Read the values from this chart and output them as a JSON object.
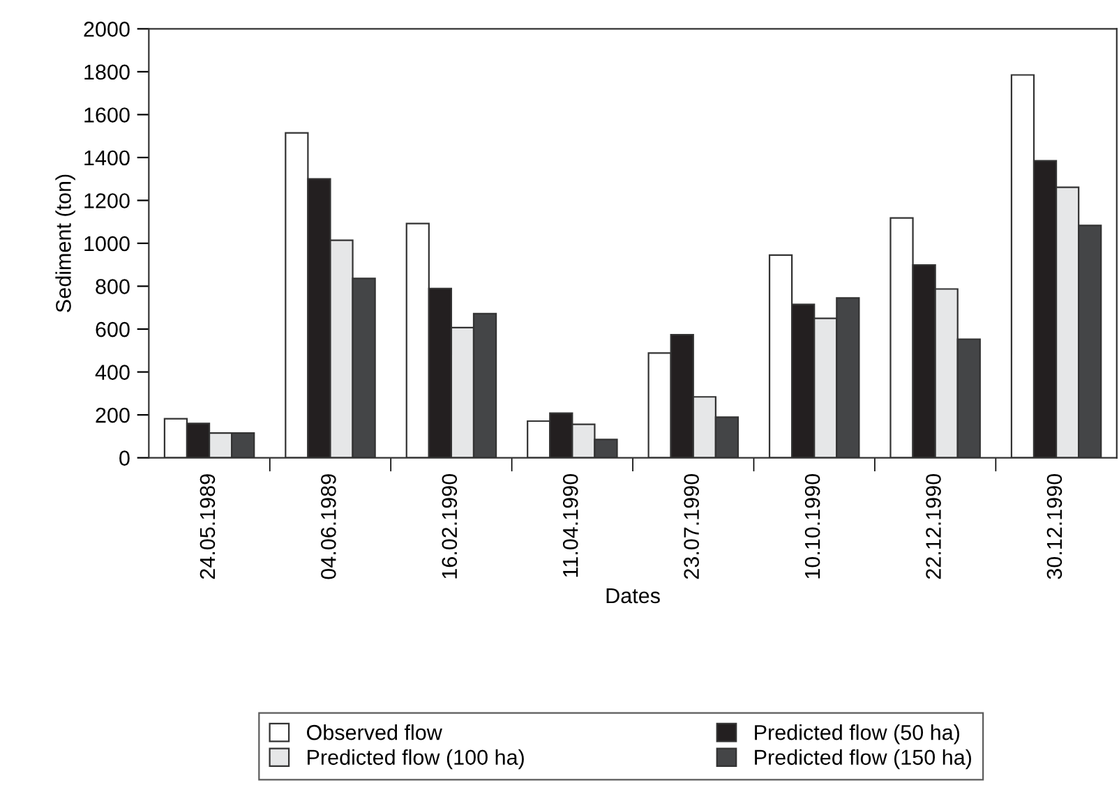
{
  "chart_data": {
    "type": "bar",
    "xlabel": "Dates",
    "ylabel": "Sediment (ton)",
    "categories": [
      "24.05.1989",
      "04.06.1989",
      "16.02.1990",
      "11.04.1990",
      "23.07.1990",
      "10.10.1990",
      "22.12.1990",
      "30.12.1990"
    ],
    "series": [
      {
        "name": "Observed flow",
        "color": "#ffffff",
        "values": [
          182,
          1515,
          1092,
          171,
          488,
          945,
          1118,
          1785
        ]
      },
      {
        "name": "Predicted flow (50 ha)",
        "color": "#231f20",
        "values": [
          160,
          1300,
          789,
          208,
          574,
          715,
          899,
          1385
        ]
      },
      {
        "name": "Predicted flow (100 ha)",
        "color": "#e6e7e8",
        "values": [
          115,
          1014,
          607,
          156,
          284,
          650,
          787,
          1261
        ]
      },
      {
        "name": "Predicted flow (150 ha)",
        "color": "#444547",
        "values": [
          115,
          836,
          672,
          85,
          189,
          745,
          553,
          1083
        ]
      }
    ],
    "ylim": [
      0,
      2000
    ],
    "yticks": [
      0,
      200,
      400,
      600,
      800,
      1000,
      1200,
      1400,
      1600,
      1800,
      2000
    ],
    "grid": false,
    "legend": "bottom"
  }
}
